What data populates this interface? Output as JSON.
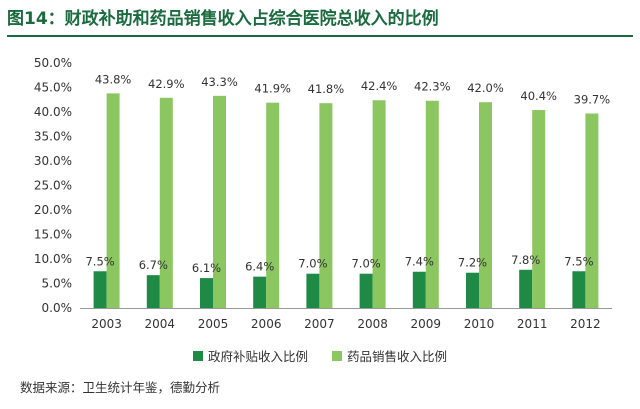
{
  "title": "图14：财政补助和药品销售收入占综合医院总收入的比例",
  "source": "数据来源：卫生统计年鉴，德勤分析",
  "colors": {
    "title": "#1a6b3f",
    "series1": "#1e8a45",
    "series2": "#8cc660"
  },
  "chart_data": {
    "type": "bar",
    "categories": [
      "2003",
      "2004",
      "2005",
      "2006",
      "2007",
      "2008",
      "2009",
      "2010",
      "2011",
      "2012"
    ],
    "series": [
      {
        "name": "政府补贴收入比例",
        "values": [
          7.5,
          6.7,
          6.1,
          6.4,
          7.0,
          7.0,
          7.4,
          7.2,
          7.8,
          7.5
        ],
        "labels": [
          "7.5%",
          "6.7%",
          "6.1%",
          "6.4%",
          "7.0%",
          "7.0%",
          "7.4%",
          "7.2%",
          "7.8%",
          "7.5%"
        ]
      },
      {
        "name": "药品销售收入比例",
        "values": [
          43.8,
          42.9,
          43.3,
          41.9,
          41.8,
          42.4,
          42.3,
          42.0,
          40.4,
          39.7
        ],
        "labels": [
          "43.8%",
          "42.9%",
          "43.3%",
          "41.9%",
          "41.8%",
          "42.4%",
          "42.3%",
          "42.0%",
          "40.4%",
          "39.7%"
        ]
      }
    ],
    "yticks": [
      "0.0%",
      "5.0%",
      "10.0%",
      "15.0%",
      "20.0%",
      "25.0%",
      "30.0%",
      "35.0%",
      "40.0%",
      "45.0%",
      "50.0%"
    ],
    "ylim": [
      0,
      50
    ],
    "grid": false,
    "legend": "bottom"
  }
}
